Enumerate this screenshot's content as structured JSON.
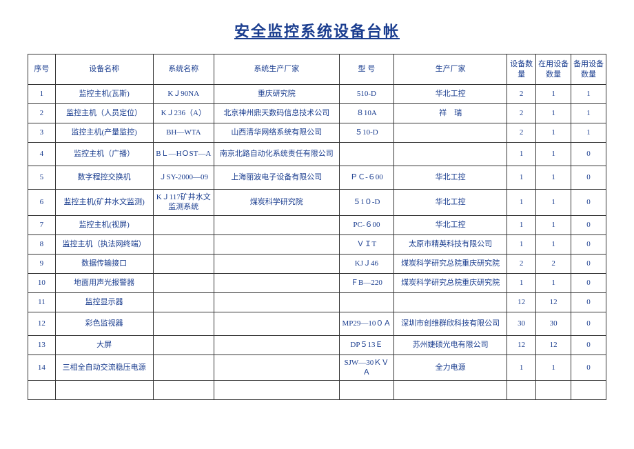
{
  "title": "安全监控系统设备台帐",
  "columns": [
    "序号",
    "设备名称",
    "系统名称",
    "系统生产厂家",
    "型  号",
    "生产厂家",
    "设备数量",
    "在用设备数量",
    "备用设备数量"
  ],
  "rows": [
    {
      "seq": "1",
      "name": "监控主机(瓦斯)",
      "sys": "KＪ90NA",
      "sysmfr": "重庆研究院",
      "model": "510-D",
      "mfr": "华北工控",
      "qty": "2",
      "inuse": "1",
      "spare": "1",
      "tall": false
    },
    {
      "seq": "2",
      "name": "监控主机（人员定位）",
      "sys": "KＪ236（A）",
      "sysmfr": "北京神州鼎天数码信息技术公司",
      "model": "８10A",
      "mfr": "祥　瑞",
      "qty": "2",
      "inuse": "1",
      "spare": "1",
      "tall": false
    },
    {
      "seq": "3",
      "name": "监控主机(产量监控)",
      "sys": "BH—WTA",
      "sysmfr": "山西清华网络系统有限公司",
      "model": "５10-D",
      "mfr": "",
      "qty": "2",
      "inuse": "1",
      "spare": "1",
      "tall": false
    },
    {
      "seq": "4",
      "name": "监控主机（广播）",
      "sys": "BＬ—HＯST—A",
      "sysmfr": "南京北路自动化系统责任有限公司",
      "model": "",
      "mfr": "",
      "qty": "1",
      "inuse": "1",
      "spare": "0",
      "tall": true
    },
    {
      "seq": "5",
      "name": "数字程控交换机",
      "sys": "ＪSY-2000—09",
      "sysmfr": "上海丽波电子设备有限公司",
      "model": "ＰＣ-６00",
      "mfr": "华北工控",
      "qty": "1",
      "inuse": "1",
      "spare": "0",
      "tall": true
    },
    {
      "seq": "6",
      "name": "监控主机(矿井水文监测)",
      "sys": "KＪ117矿井水文监测系统",
      "sysmfr": "煤炭科学研究院",
      "model": "５1０-D",
      "mfr": "华北工控",
      "qty": "1",
      "inuse": "1",
      "spare": "0",
      "tall": true
    },
    {
      "seq": "7",
      "name": "监控主机(视屏)",
      "sys": "",
      "sysmfr": "",
      "model": "PC-６00",
      "mfr": "华北工控",
      "qty": "1",
      "inuse": "1",
      "spare": "0",
      "tall": false
    },
    {
      "seq": "8",
      "name": "监控主机（执法网终端）",
      "sys": "",
      "sysmfr": "",
      "model": "ＶＩT",
      "mfr": "太原市精英科技有限公司",
      "qty": "1",
      "inuse": "1",
      "spare": "0",
      "tall": false
    },
    {
      "seq": "9",
      "name": "数据传输接口",
      "sys": "",
      "sysmfr": "",
      "model": "KJＪ46",
      "mfr": "煤炭科学研究总院重庆研究院",
      "qty": "2",
      "inuse": "2",
      "spare": "0",
      "tall": false
    },
    {
      "seq": "10",
      "name": "地面用声光报警器",
      "sys": "",
      "sysmfr": "",
      "model": "ＦB—220",
      "mfr": "煤炭科学研究总院重庆研究院",
      "qty": "1",
      "inuse": "1",
      "spare": "0",
      "tall": false
    },
    {
      "seq": "11",
      "name": "监控显示器",
      "sys": "",
      "sysmfr": "",
      "model": "",
      "mfr": "",
      "qty": "12",
      "inuse": "12",
      "spare": "0",
      "tall": false
    },
    {
      "seq": "12",
      "name": "彩色监视器",
      "sys": "",
      "sysmfr": "",
      "model": "MP29—10０Ａ",
      "mfr": "深圳市创维群欣科技有限公司",
      "qty": "30",
      "inuse": "30",
      "spare": "0",
      "tall": true
    },
    {
      "seq": "13",
      "name": "大屏",
      "sys": "",
      "sysmfr": "",
      "model": "DP５13Ｅ",
      "mfr": "苏州婕硕光电有限公司",
      "qty": "12",
      "inuse": "12",
      "spare": "0",
      "tall": false
    },
    {
      "seq": "14",
      "name": "三相全自动交流稳压电源",
      "sys": "",
      "sysmfr": "",
      "model": "SJW—30ＫＶＡ",
      "mfr": "全力电源",
      "qty": "1",
      "inuse": "1",
      "spare": "0",
      "tall": true
    },
    {
      "seq": "",
      "name": "",
      "sys": "",
      "sysmfr": "",
      "model": "",
      "mfr": "",
      "qty": "",
      "inuse": "",
      "spare": "",
      "tall": false
    }
  ],
  "style": {
    "title_color": "#1a3d8f",
    "text_color": "#1a3d8f",
    "border_color": "#333333",
    "background": "#ffffff",
    "title_fontsize": 22,
    "cell_fontsize": 11
  }
}
